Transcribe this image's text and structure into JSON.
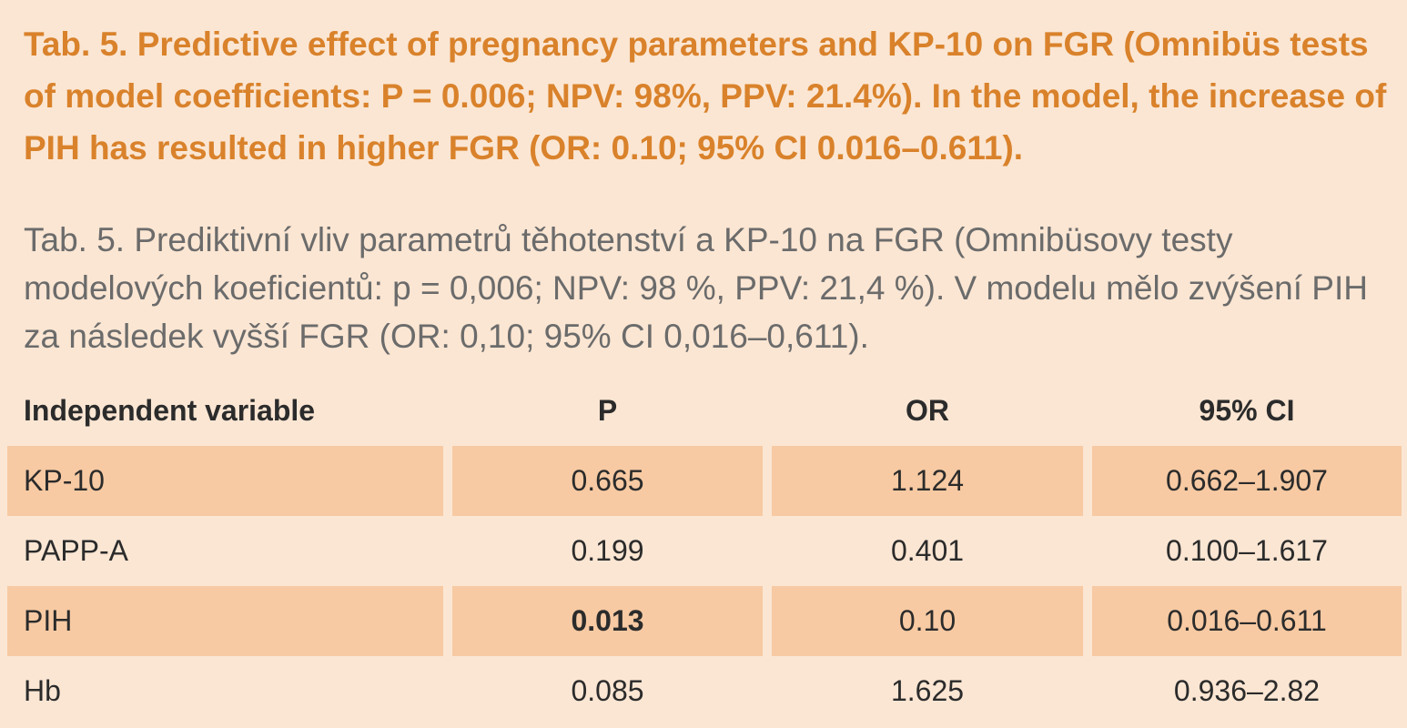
{
  "caption": {
    "english": "Tab. 5. Predictive effect of pregnancy parameters and KP-10 on FGR (Omnibüs tests of model coefficients: P = 0.006; NPV: 98%, PPV: 21.4%). In the model, the increase of PIH has resulted in higher FGR (OR: 0.10; 95% CI 0.016–0.611).",
    "czech": "Tab. 5. Prediktivní vliv parametrů těhotenství a KP-10 na FGR (Omnibüsovy testy modelových koeficientů: p = 0,006; NPV: 98 %, PPV: 21,4 %). V modelu mělo zvýšení PIH za následek vyšší FGR (OR: 0,10; 95% CI 0,016–0,611)."
  },
  "table": {
    "headers": [
      "Independent variable",
      "P",
      "OR",
      "95% CI"
    ],
    "rows": [
      {
        "variable": "KP-10",
        "p": "0.665",
        "or": "1.124",
        "ci": "0.662–1.907"
      },
      {
        "variable": "PAPP-A",
        "p": "0.199",
        "or": "0.401",
        "ci": "0.100–1.617"
      },
      {
        "variable": "PIH",
        "p": "0.013",
        "or": "0.10",
        "ci": "0.016–0.611"
      },
      {
        "variable": "Hb",
        "p": "0.085",
        "or": "1.625",
        "ci": "0.936–2.82"
      }
    ]
  },
  "colors": {
    "background": "#fbe6d3",
    "shaded_row": "#f7caa3",
    "english_caption": "#d9822b",
    "czech_caption": "#6b6b6b"
  }
}
